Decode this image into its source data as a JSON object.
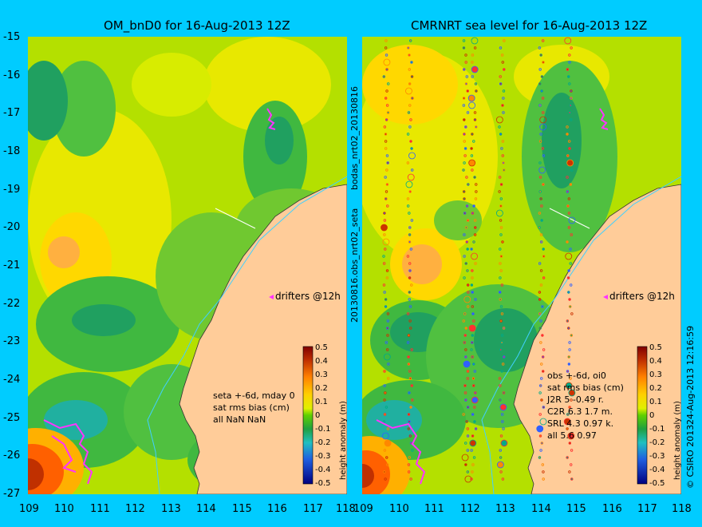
{
  "left_panel": {
    "title": "OM_bnD0 for 16-Aug-2013 12Z",
    "drifters_label": "drifters @12h",
    "stats": [
      "seta +-6d, mday 0",
      "sat rms bias (cm)",
      "all NaN NaN"
    ],
    "colorbar_label": "height anomaly (m)"
  },
  "right_panel": {
    "title": "CMRNRT sea level  for 16-Aug-2013 12Z",
    "drifters_label": "drifters @12h",
    "stats": [
      "obs +-6d, oi0",
      "sat rms bias (cm)",
      "J2R    5  -0.49  r.",
      "C2R   6.3  1.7  m.",
      "SRL    4.3  0.97  k.",
      "all    5.6  0.97"
    ],
    "colorbar_label": "height anomaly (m)"
  },
  "axes": {
    "lat_ticks": [
      "-15",
      "-16",
      "-17",
      "-18",
      "-19",
      "-20",
      "-21",
      "-22",
      "-23",
      "-24",
      "-25",
      "-26",
      "-27"
    ],
    "lon_ticks": [
      "109",
      "110",
      "111",
      "112",
      "113",
      "114",
      "115",
      "116",
      "117",
      "118"
    ],
    "colorbar_ticks": [
      "0.5",
      "0.4",
      "0.3",
      "0.2",
      "0.1",
      "0",
      "-0.1",
      "-0.2",
      "-0.3",
      "-0.4",
      "-0.5"
    ]
  },
  "side_labels": {
    "middle_top": "bodas_nrt02_20130816",
    "middle_bottom": "20130816.obs_nrt02_seta",
    "right_edge": "24-Aug-2013 12:16:59",
    "copyright": "© CSIRO 2013"
  },
  "colors": {
    "background": "#00ccff",
    "land": "#ffcc99",
    "coastline_current": "#40d0ff",
    "drifter": "#ff33ff"
  }
}
